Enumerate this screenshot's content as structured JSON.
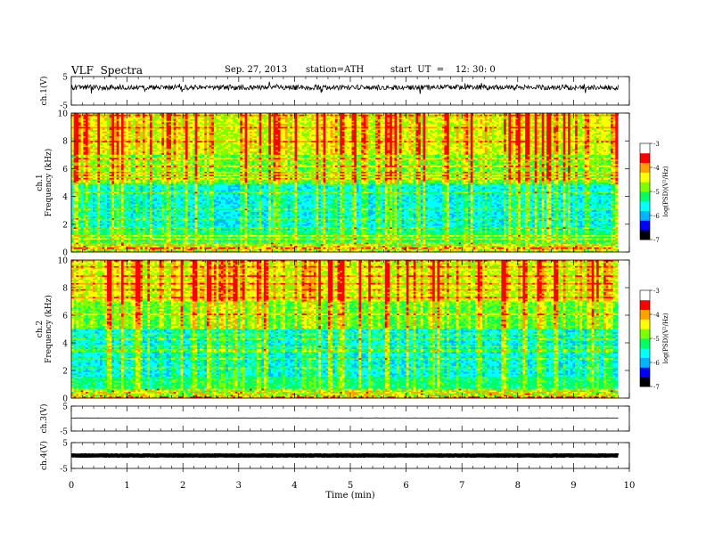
{
  "header": {
    "title": "VLF  Spectra",
    "date": "Sep. 27, 2013",
    "station": "station=ATH",
    "start": "start  UT  =    12: 30: 0"
  },
  "chart_data": [
    {
      "type": "line",
      "name": "ch1-waveform",
      "ylabel": "ch.1(V)",
      "ylim": [
        -5,
        5
      ],
      "yticks": [
        "5",
        "-5"
      ],
      "xlim": [
        0,
        10
      ],
      "x_end": 9.8,
      "amplitude_typical": 0.9,
      "amplitude_peak": 2.3
    },
    {
      "type": "heatmap",
      "name": "ch1-spectrogram",
      "ylabel": "ch.1\nFrequency  (kHz)",
      "ylim": [
        0,
        10
      ],
      "yticks": [
        "0",
        "2",
        "4",
        "6",
        "8",
        "10"
      ],
      "xlim": [
        0,
        10
      ],
      "x_end": 9.8,
      "colorbar": {
        "label": "log(PSD)(V²/Hz)",
        "range": [
          -7,
          -3
        ],
        "ticks": [
          "-7",
          "-6",
          "-5",
          "-4",
          "-3"
        ]
      }
    },
    {
      "type": "heatmap",
      "name": "ch2-spectrogram",
      "ylabel": "ch.2\nFrequency  (kHz)",
      "ylim": [
        0,
        10
      ],
      "yticks": [
        "0",
        "2",
        "4",
        "6",
        "8",
        "10"
      ],
      "xlim": [
        0,
        10
      ],
      "x_end": 9.8,
      "colorbar": {
        "label": "log(PSD)(V²/Hz)",
        "range": [
          -7,
          -3
        ],
        "ticks": [
          "-7",
          "-6",
          "-5",
          "-4",
          "-3"
        ]
      }
    },
    {
      "type": "line",
      "name": "ch3-waveform",
      "ylabel": "ch.3(V)",
      "ylim": [
        -5,
        5
      ],
      "yticks": [
        "5",
        "-5"
      ],
      "xlim": [
        0,
        10
      ],
      "x_end": 9.8,
      "level": 0.2
    },
    {
      "type": "line",
      "name": "ch4-waveform",
      "ylabel": "ch.4(V)",
      "ylim": [
        -5,
        5
      ],
      "yticks": [
        "5",
        "-5"
      ],
      "xlim": [
        0,
        10
      ],
      "x_end": 9.8,
      "level": 0
    }
  ],
  "xaxis": {
    "label": "Time  (min)",
    "ticks": [
      "0",
      "1",
      "2",
      "3",
      "4",
      "5",
      "6",
      "7",
      "8",
      "9",
      "10"
    ]
  },
  "colors": {
    "spectrum": [
      "#000000",
      "#0000ff",
      "#00b4ff",
      "#00ffff",
      "#00ff66",
      "#7dff00",
      "#ffff00",
      "#ffa000",
      "#ff0000",
      "#ffffff"
    ]
  }
}
